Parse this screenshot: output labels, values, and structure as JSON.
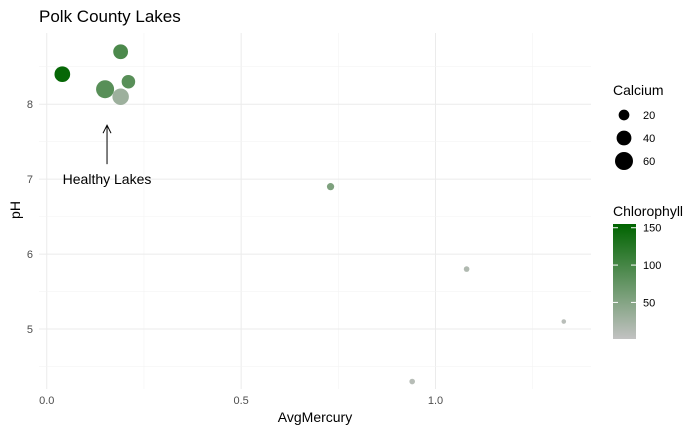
{
  "chart_data": {
    "type": "scatter",
    "title": "Polk County Lakes",
    "xlabel": "AvgMercury",
    "ylabel": "pH",
    "xlim": [
      -0.02,
      1.4
    ],
    "ylim": [
      4.2,
      8.95
    ],
    "xticks": [
      0.0,
      0.5,
      1.0
    ],
    "xtick_labels": [
      "0.0",
      "0.5",
      "1.0"
    ],
    "yticks": [
      5,
      6,
      7,
      8
    ],
    "ytick_labels": [
      "5",
      "6",
      "7",
      "8"
    ],
    "grid": true,
    "points": [
      {
        "x": 0.04,
        "y": 8.4,
        "calcium": 45,
        "chlorophyll": 150
      },
      {
        "x": 0.19,
        "y": 8.7,
        "calcium": 40,
        "chlorophyll": 95
      },
      {
        "x": 0.21,
        "y": 8.3,
        "calcium": 33,
        "chlorophyll": 85
      },
      {
        "x": 0.15,
        "y": 8.2,
        "calcium": 60,
        "chlorophyll": 85
      },
      {
        "x": 0.19,
        "y": 8.1,
        "calcium": 50,
        "chlorophyll": 30
      },
      {
        "x": 0.73,
        "y": 6.9,
        "calcium": 8,
        "chlorophyll": 55
      },
      {
        "x": 1.08,
        "y": 5.8,
        "calcium": 4,
        "chlorophyll": 15
      },
      {
        "x": 0.94,
        "y": 4.3,
        "calcium": 4,
        "chlorophyll": 10
      },
      {
        "x": 1.33,
        "y": 5.1,
        "calcium": 2,
        "chlorophyll": 8
      }
    ],
    "size_legend": {
      "title": "Calcium",
      "values": [
        20,
        40,
        60
      ],
      "labels": [
        "20",
        "40",
        "60"
      ],
      "range": [
        1,
        60
      ]
    },
    "color_legend": {
      "title": "Chlorophyll",
      "ticks": [
        50,
        100,
        150
      ],
      "labels": [
        "50",
        "100",
        "150"
      ],
      "range": [
        1,
        155
      ],
      "low_color": "#c2c2c2",
      "high_color": "#006400"
    },
    "annotation": {
      "text": "Healthy Lakes",
      "arrow_from": [
        0.155,
        7.2
      ],
      "arrow_to": [
        0.155,
        7.72
      ],
      "text_at": [
        0.155,
        7.0
      ]
    }
  }
}
